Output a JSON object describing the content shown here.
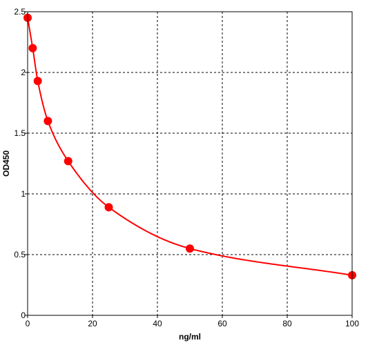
{
  "chart_data": {
    "type": "scatter",
    "title": "",
    "xlabel": "ng/ml",
    "ylabel": "OD450",
    "xlim": [
      0,
      100
    ],
    "ylim": [
      0,
      2.5
    ],
    "x_ticks": [
      "0",
      "20",
      "40",
      "60",
      "80",
      "100"
    ],
    "y_ticks": [
      "0",
      "0.5",
      "1",
      "1.5",
      "2",
      "2.5"
    ],
    "grid": true,
    "legend": "none",
    "colors": {
      "series": "#ff0000",
      "grid": "#000000",
      "frame": "#000000",
      "background": "#ffffff"
    },
    "series": [
      {
        "x": [
          0,
          1.5625,
          3.125,
          6.25,
          12.5,
          25,
          50,
          100
        ],
        "y": [
          2.45,
          2.2,
          1.93,
          1.6,
          1.27,
          0.89,
          0.55,
          0.33
        ]
      }
    ]
  }
}
